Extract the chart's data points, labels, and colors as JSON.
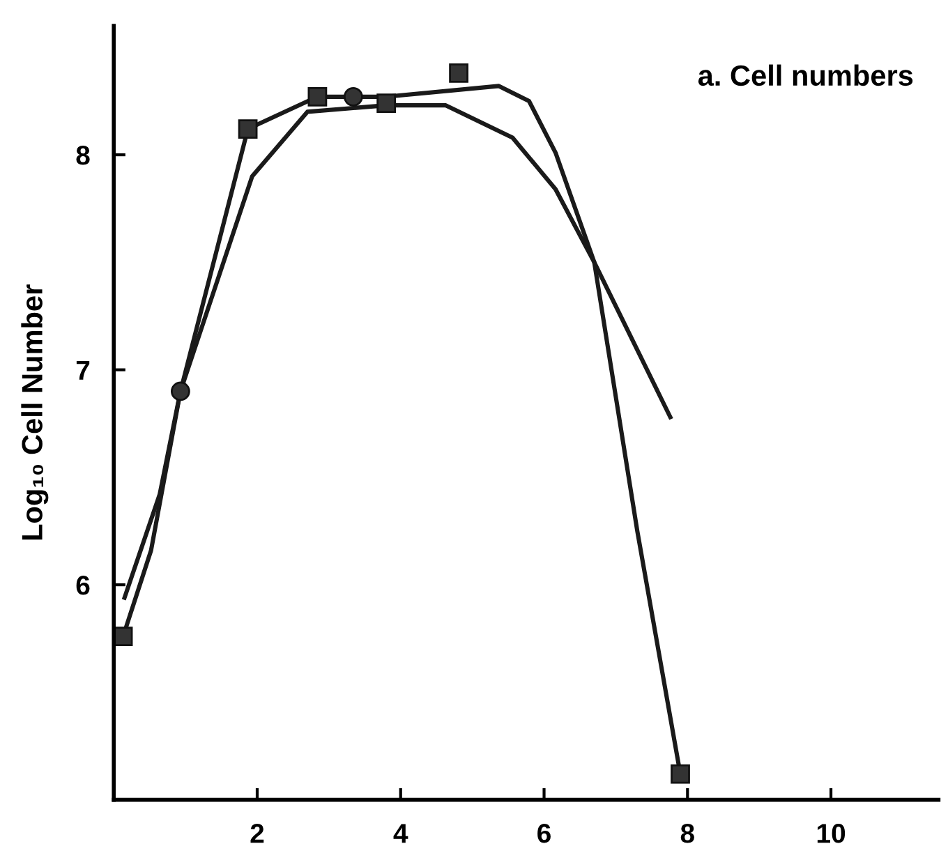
{
  "chart_data": {
    "type": "line",
    "title": "a. Cell numbers",
    "ylabel": "Log₁₀ Cell Number",
    "xlim": [
      0,
      11.5
    ],
    "xticks": [
      2,
      4,
      6,
      8,
      10
    ],
    "ylim": [
      5.0,
      8.6
    ],
    "yticks": [
      6,
      7,
      8
    ],
    "grid": false,
    "legend": false,
    "series": [
      {
        "color": "#1a1a1a",
        "marker": "none",
        "x": [
          0.13,
          0.52,
          0.93,
          1.87,
          2.84,
          3.34,
          3.8,
          5.37,
          5.79,
          6.16,
          6.7,
          7.3,
          7.9
        ],
        "values": [
          5.76,
          6.16,
          6.9,
          8.12,
          8.27,
          8.27,
          8.27,
          8.32,
          8.25,
          8.01,
          7.5,
          6.25,
          5.12
        ]
      },
      {
        "color": "#1a1a1a",
        "marker": "none",
        "x": [
          0.15,
          0.64,
          0.93,
          1.93,
          2.7,
          3.8,
          4.63,
          5.56,
          6.16,
          6.7,
          7.76
        ],
        "values": [
          5.94,
          6.42,
          6.9,
          7.9,
          8.2,
          8.23,
          8.23,
          8.08,
          7.84,
          7.5,
          6.78
        ]
      },
      {
        "type": "scatter",
        "color": "#333333",
        "marker": "square",
        "x": [
          0.13,
          1.87,
          2.84,
          3.8,
          4.81,
          7.9
        ],
        "values": [
          5.76,
          8.12,
          8.27,
          8.24,
          8.38,
          5.12
        ]
      },
      {
        "type": "scatter",
        "color": "#333333",
        "marker": "circle",
        "x": [
          0.93,
          3.34
        ],
        "values": [
          6.9,
          8.27
        ]
      }
    ]
  }
}
